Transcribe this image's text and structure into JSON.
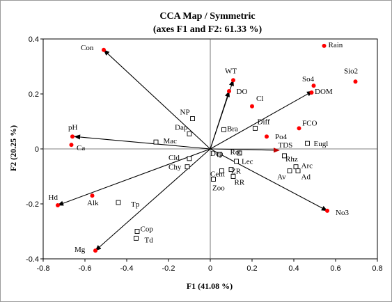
{
  "chart_data": {
    "type": "scatter",
    "title": "CCA Map / Symmetric",
    "subtitle": "(axes F1 and F2: 61.33 %)",
    "xlabel": "F1 (41.08 %)",
    "ylabel": "F2 (20.25 %)",
    "xlim": [
      -0.8,
      0.8
    ],
    "ylim": [
      -0.4,
      0.4
    ],
    "xticks": [
      "-0.8",
      "-0.6",
      "-0.4",
      "-0.2",
      "0",
      "0.2",
      "0.4",
      "0.6",
      "0.8"
    ],
    "yticks": [
      "-0.4",
      "-0.2",
      "0",
      "0.2",
      "0.4"
    ],
    "grid": false,
    "vector_color": "#000000",
    "vector_red_head_color": "#c00000",
    "point_color": "#ff0000",
    "vectors": [
      {
        "name": "Con",
        "x": -0.51,
        "y": 0.36
      },
      {
        "name": "WT",
        "x": 0.11,
        "y": 0.25
      },
      {
        "name": "DO",
        "x": 0.09,
        "y": 0.21
      },
      {
        "name": "DOM",
        "x": 0.49,
        "y": 0.21
      },
      {
        "name": "pH",
        "x": -0.65,
        "y": 0.045
      },
      {
        "name": "TDS",
        "x": 0.33,
        "y": -0.005
      },
      {
        "name": "Hd",
        "x": -0.73,
        "y": -0.205
      },
      {
        "name": "Mg",
        "x": -0.55,
        "y": -0.37
      },
      {
        "name": "No3",
        "x": 0.56,
        "y": -0.225
      }
    ],
    "env_points": [
      {
        "name": "Con",
        "x": -0.51,
        "y": 0.36
      },
      {
        "name": "Rain",
        "x": 0.545,
        "y": 0.375
      },
      {
        "name": "WT",
        "x": 0.11,
        "y": 0.25
      },
      {
        "name": "DO",
        "x": 0.09,
        "y": 0.21
      },
      {
        "name": "Cl",
        "x": 0.2,
        "y": 0.155
      },
      {
        "name": "So4",
        "x": 0.495,
        "y": 0.23
      },
      {
        "name": "Sio2",
        "x": 0.695,
        "y": 0.245
      },
      {
        "name": "DOM",
        "x": 0.485,
        "y": 0.205
      },
      {
        "name": "FCO",
        "x": 0.425,
        "y": 0.075
      },
      {
        "name": "Po4",
        "x": 0.27,
        "y": 0.045
      },
      {
        "name": "pH",
        "x": -0.66,
        "y": 0.045
      },
      {
        "name": "Ca",
        "x": -0.665,
        "y": 0.015
      },
      {
        "name": "Hd",
        "x": -0.73,
        "y": -0.205
      },
      {
        "name": "Alk",
        "x": -0.565,
        "y": -0.17
      },
      {
        "name": "Mg",
        "x": -0.55,
        "y": -0.37
      },
      {
        "name": "No3",
        "x": 0.56,
        "y": -0.225
      }
    ],
    "species_points": [
      {
        "name": "NP",
        "x": -0.085,
        "y": 0.11
      },
      {
        "name": "Dap",
        "x": -0.1,
        "y": 0.055
      },
      {
        "name": "Mac",
        "x": -0.26,
        "y": 0.025
      },
      {
        "name": "Bra",
        "x": 0.065,
        "y": 0.07
      },
      {
        "name": "Diff",
        "x": 0.215,
        "y": 0.075
      },
      {
        "name": "Eugl",
        "x": 0.465,
        "y": 0.02
      },
      {
        "name": "Cld",
        "x": -0.1,
        "y": -0.035
      },
      {
        "name": "Chy",
        "x": -0.11,
        "y": -0.065
      },
      {
        "name": "Dep",
        "x": 0.045,
        "y": -0.02
      },
      {
        "name": "Rot",
        "x": 0.14,
        "y": -0.015
      },
      {
        "name": "Lec",
        "x": 0.125,
        "y": -0.045
      },
      {
        "name": "Rhz",
        "x": 0.355,
        "y": -0.025
      },
      {
        "name": "Arc",
        "x": 0.41,
        "y": -0.065
      },
      {
        "name": "Ad",
        "x": 0.42,
        "y": -0.08
      },
      {
        "name": "Av",
        "x": 0.38,
        "y": -0.08
      },
      {
        "name": "Cent",
        "x": 0.055,
        "y": -0.08
      },
      {
        "name": "ZR",
        "x": 0.1,
        "y": -0.075
      },
      {
        "name": "RR",
        "x": 0.11,
        "y": -0.1
      },
      {
        "name": "Zoo",
        "x": 0.015,
        "y": -0.11
      },
      {
        "name": "Tp",
        "x": -0.44,
        "y": -0.195
      },
      {
        "name": "Cop",
        "x": -0.35,
        "y": -0.3
      },
      {
        "name": "Td",
        "x": -0.355,
        "y": -0.325
      }
    ],
    "labels": [
      {
        "text": "Con",
        "x": -0.62,
        "y": 0.36
      },
      {
        "text": "Rain",
        "x": 0.565,
        "y": 0.37
      },
      {
        "text": "WT",
        "x": 0.07,
        "y": 0.275
      },
      {
        "text": "DO",
        "x": 0.125,
        "y": 0.2
      },
      {
        "text": "Cl",
        "x": 0.22,
        "y": 0.175
      },
      {
        "text": "So4",
        "x": 0.44,
        "y": 0.245
      },
      {
        "text": "Sio2",
        "x": 0.64,
        "y": 0.275
      },
      {
        "text": "DOM",
        "x": 0.5,
        "y": 0.2
      },
      {
        "text": "FCO",
        "x": 0.44,
        "y": 0.085
      },
      {
        "text": "Po4",
        "x": 0.31,
        "y": 0.035
      },
      {
        "text": "Diff",
        "x": 0.225,
        "y": 0.09
      },
      {
        "text": "Eugl",
        "x": 0.495,
        "y": 0.01
      },
      {
        "text": "Bra",
        "x": 0.08,
        "y": 0.065
      },
      {
        "text": "NP",
        "x": -0.145,
        "y": 0.125
      },
      {
        "text": "Dap",
        "x": -0.17,
        "y": 0.07
      },
      {
        "text": "Mac",
        "x": -0.225,
        "y": 0.02
      },
      {
        "text": "pH",
        "x": -0.68,
        "y": 0.07
      },
      {
        "text": "Ca",
        "x": -0.64,
        "y": -0.005
      },
      {
        "text": "Cld",
        "x": -0.2,
        "y": -0.04
      },
      {
        "text": "Chy",
        "x": -0.2,
        "y": -0.075
      },
      {
        "text": "Dep",
        "x": 0.0,
        "y": -0.025
      },
      {
        "text": "Rot",
        "x": 0.095,
        "y": -0.02
      },
      {
        "text": "TDS",
        "x": 0.325,
        "y": 0.005
      },
      {
        "text": "Rhz",
        "x": 0.36,
        "y": -0.045
      },
      {
        "text": "Lec",
        "x": 0.15,
        "y": -0.055
      },
      {
        "text": "Arc",
        "x": 0.435,
        "y": -0.07
      },
      {
        "text": "Ad",
        "x": 0.435,
        "y": -0.11
      },
      {
        "text": "Av",
        "x": 0.32,
        "y": -0.11
      },
      {
        "text": "Cent",
        "x": 0.0,
        "y": -0.1
      },
      {
        "text": "ZR",
        "x": 0.1,
        "y": -0.09
      },
      {
        "text": "RR",
        "x": 0.115,
        "y": -0.13
      },
      {
        "text": "Zoo",
        "x": 0.01,
        "y": -0.15
      },
      {
        "text": "Hd",
        "x": -0.775,
        "y": -0.185
      },
      {
        "text": "Alk",
        "x": -0.59,
        "y": -0.205
      },
      {
        "text": "Tp",
        "x": -0.38,
        "y": -0.21
      },
      {
        "text": "Cop",
        "x": -0.335,
        "y": -0.3
      },
      {
        "text": "Td",
        "x": -0.315,
        "y": -0.34
      },
      {
        "text": "Mg",
        "x": -0.65,
        "y": -0.375
      },
      {
        "text": "No3",
        "x": 0.6,
        "y": -0.24
      }
    ]
  }
}
